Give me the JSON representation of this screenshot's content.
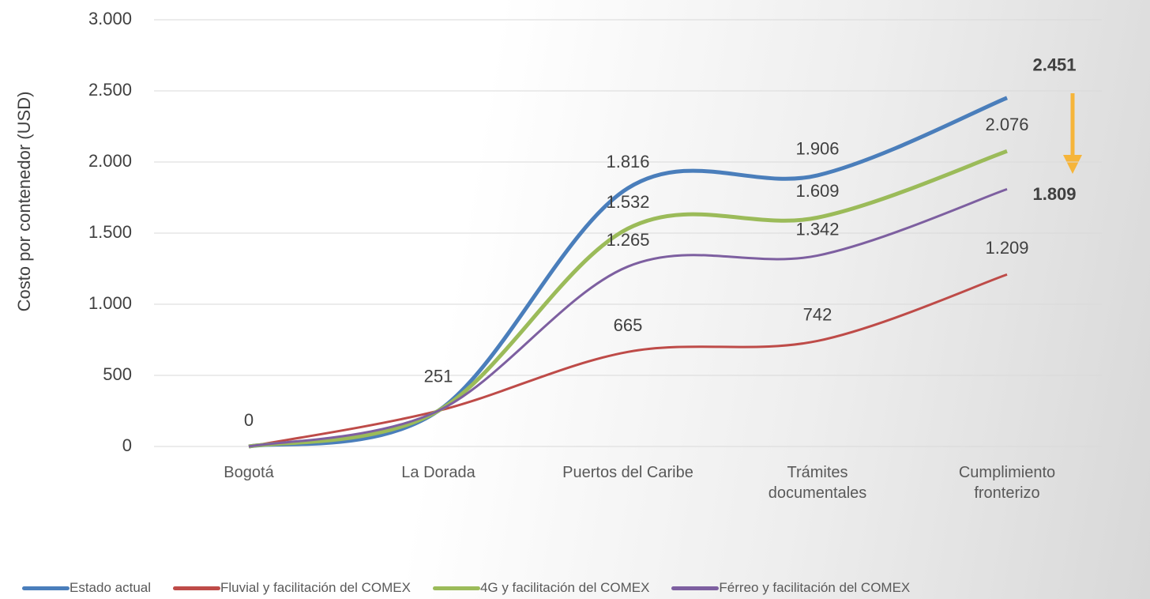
{
  "chart_data": {
    "type": "line",
    "y_label": "Costo por contenedor (USD)",
    "categories": [
      "Bogotá",
      "La Dorada",
      "Puertos del Caribe",
      "Trámites documentales",
      "Cumplimiento fronterizo"
    ],
    "series": [
      {
        "name": "Estado actual",
        "color": "#4a7ebb",
        "values": [
          0,
          251,
          1816,
          1906,
          2451
        ],
        "value_labels": [
          "0",
          "251",
          "1.816",
          "1.906",
          "2.451"
        ]
      },
      {
        "name": "Fluvial y facilitación del COMEX",
        "color": "#be4b48",
        "values": [
          0,
          251,
          665,
          742,
          1209
        ],
        "value_labels": [
          null,
          null,
          "665",
          "742",
          "1.209"
        ]
      },
      {
        "name": "4G y facilitación del COMEX",
        "color": "#9bbb59",
        "values": [
          0,
          251,
          1532,
          1609,
          2076
        ],
        "value_labels": [
          null,
          null,
          "1.532",
          "1.609",
          "2.076"
        ]
      },
      {
        "name": "Férreo y facilitación del COMEX",
        "color": "#7d5fa0",
        "values": [
          0,
          251,
          1265,
          1342,
          1809
        ],
        "value_labels": [
          null,
          null,
          "1.265",
          "1.342",
          "1.809"
        ]
      }
    ],
    "ylim": [
      0,
      3000
    ],
    "yticks": [
      0,
      500,
      {
        "value": 1000,
        "label": "1.000"
      },
      {
        "value": 1500,
        "label": "1.500"
      },
      {
        "value": 2000,
        "label": "2.000"
      },
      {
        "value": 2500,
        "label": "2.500"
      },
      {
        "value": 3000,
        "label": "3.000"
      }
    ],
    "grid": true
  }
}
